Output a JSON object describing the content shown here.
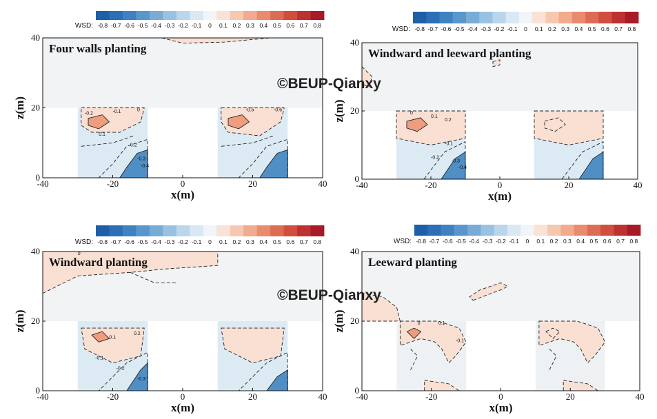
{
  "watermark": "©BEUP-Qianxy",
  "chart_data": [
    {
      "type": "contour",
      "title": "Four walls planting",
      "xlabel": "x(m)",
      "ylabel": "z(m)",
      "xlim": [
        -40,
        40
      ],
      "ylim": [
        0,
        40
      ],
      "xticks": [
        -40,
        -20,
        0,
        20,
        40
      ],
      "yticks": [
        0,
        20,
        40
      ],
      "colorbar": {
        "label": "WSD:",
        "levels": [
          -0.8,
          -0.7,
          -0.6,
          -0.5,
          -0.4,
          -0.3,
          -0.2,
          -0.1,
          0,
          0.1,
          0.2,
          0.3,
          0.4,
          0.5,
          0.6,
          0.7,
          0.8
        ]
      },
      "buildings": [
        {
          "x": [
            -30,
            -10
          ],
          "z": [
            0,
            20
          ]
        },
        {
          "x": [
            10,
            30
          ],
          "z": [
            0,
            20
          ]
        }
      ],
      "contour_labels": [
        "-0.2",
        "-0.1",
        "0",
        "0.1",
        "0.2",
        "-0.3",
        "-0.4",
        "-0.5",
        "-0.6"
      ]
    },
    {
      "type": "contour",
      "title": "Windward and leeward planting",
      "xlabel": "x(m)",
      "ylabel": "z(m)",
      "xlim": [
        -40,
        40
      ],
      "ylim": [
        0,
        40
      ],
      "xticks": [
        -40,
        -20,
        0,
        20,
        40
      ],
      "yticks": [
        0,
        20,
        40
      ],
      "colorbar": {
        "label": "WSD:",
        "levels": [
          -0.8,
          -0.7,
          -0.6,
          -0.5,
          -0.4,
          -0.3,
          -0.2,
          -0.1,
          0,
          0.1,
          0.2,
          0.3,
          0.4,
          0.5,
          0.6,
          0.7,
          0.8
        ]
      },
      "buildings": [
        {
          "x": [
            -30,
            -10
          ],
          "z": [
            0,
            20
          ]
        },
        {
          "x": [
            10,
            30
          ],
          "z": [
            0,
            20
          ]
        }
      ],
      "contour_labels": [
        "0",
        "0.1",
        "0.2",
        "-0.1",
        "-0.2",
        "-0.3",
        "-0.4"
      ]
    },
    {
      "type": "contour",
      "title": "Windward planting",
      "xlabel": "x(m)",
      "ylabel": "z(m)",
      "xlim": [
        -40,
        40
      ],
      "ylim": [
        0,
        40
      ],
      "xticks": [
        -40,
        -20,
        0,
        20,
        40
      ],
      "yticks": [
        0,
        20,
        40
      ],
      "colorbar": {
        "label": "WSD:",
        "levels": [
          -0.8,
          -0.7,
          -0.6,
          -0.5,
          -0.4,
          -0.3,
          -0.2,
          -0.1,
          0,
          0.1,
          0.2,
          0.3,
          0.4,
          0.5,
          0.6,
          0.7,
          0.8
        ]
      },
      "buildings": [
        {
          "x": [
            -30,
            -10
          ],
          "z": [
            0,
            20
          ]
        },
        {
          "x": [
            10,
            30
          ],
          "z": [
            0,
            20
          ]
        }
      ],
      "contour_labels": [
        "0",
        "0.1",
        "0.2",
        "-0.1",
        "-0.2",
        "-0.3"
      ]
    },
    {
      "type": "contour",
      "title": "Leeward planting",
      "xlabel": "x(m)",
      "ylabel": "z(m)",
      "xlim": [
        -40,
        40
      ],
      "ylim": [
        0,
        40
      ],
      "xticks": [
        -40,
        -20,
        0,
        20,
        40
      ],
      "yticks": [
        0,
        20,
        40
      ],
      "colorbar": {
        "label": "WSD:",
        "levels": [
          -0.8,
          -0.7,
          -0.6,
          -0.5,
          -0.4,
          -0.3,
          -0.2,
          -0.1,
          0,
          0.1,
          0.2,
          0.3,
          0.4,
          0.5,
          0.6,
          0.7,
          0.8
        ]
      },
      "buildings": [
        {
          "x": [
            -30,
            -10
          ],
          "z": [
            0,
            20
          ]
        },
        {
          "x": [
            10,
            30
          ],
          "z": [
            0,
            20
          ]
        }
      ],
      "contour_labels": [
        "0",
        "0.1",
        "-0.1"
      ]
    }
  ]
}
